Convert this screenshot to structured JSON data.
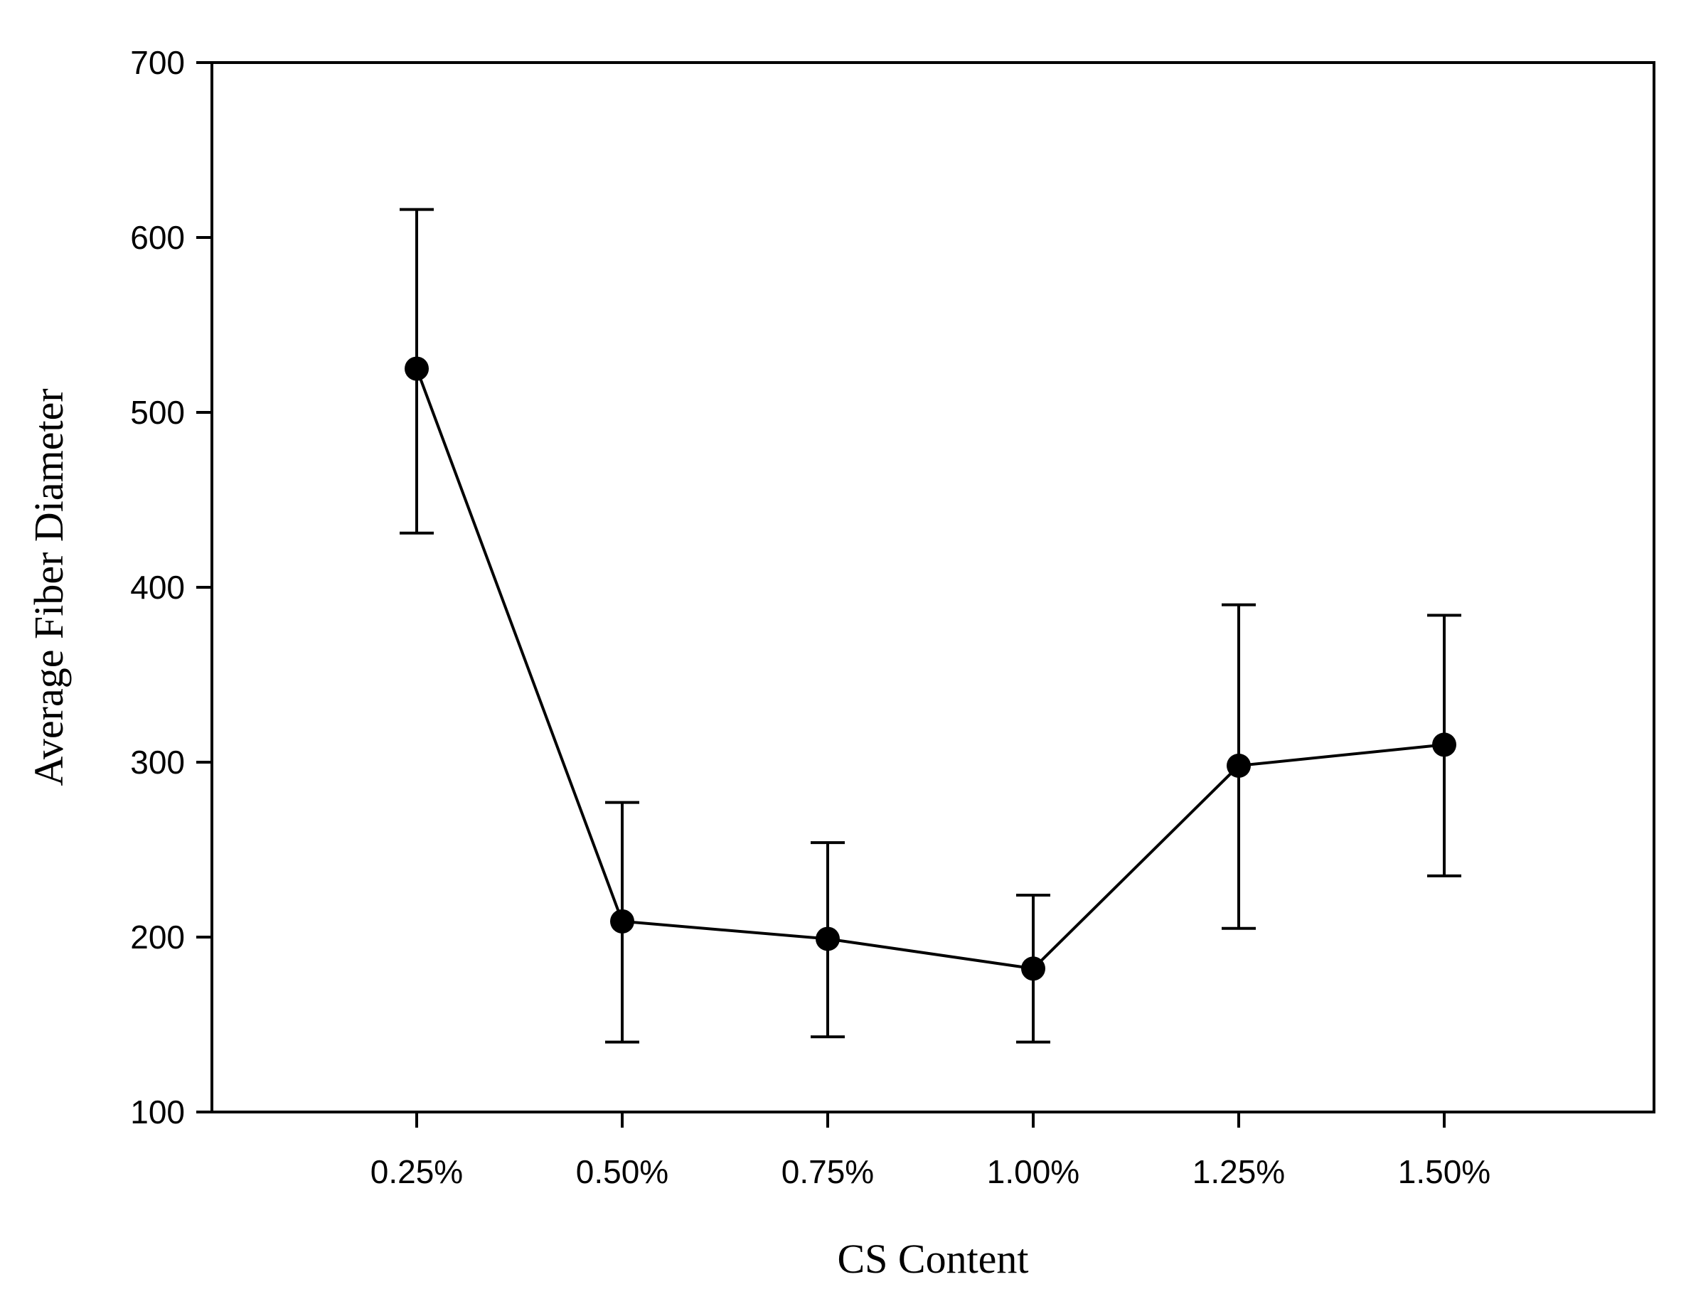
{
  "chart_data": {
    "type": "line",
    "title": "",
    "xlabel": "CS Content",
    "ylabel": "Average Fiber Diameter",
    "categories": [
      "0.25%",
      "0.50%",
      "0.75%",
      "1.00%",
      "1.25%",
      "1.50%"
    ],
    "series": [
      {
        "values": [
          525,
          209,
          199,
          182,
          298,
          310
        ],
        "error_low": [
          431,
          140,
          143,
          140,
          205,
          235
        ],
        "error_high": [
          616,
          277,
          254,
          224,
          390,
          384
        ]
      }
    ],
    "ylim": [
      100,
      700
    ],
    "yticks": [
      "100",
      "200",
      "300",
      "400",
      "500",
      "600",
      "700"
    ],
    "grid": false,
    "legend": "none",
    "colors": {
      "line": "#000000",
      "marker": "#000000",
      "background": "#ffffff"
    }
  }
}
